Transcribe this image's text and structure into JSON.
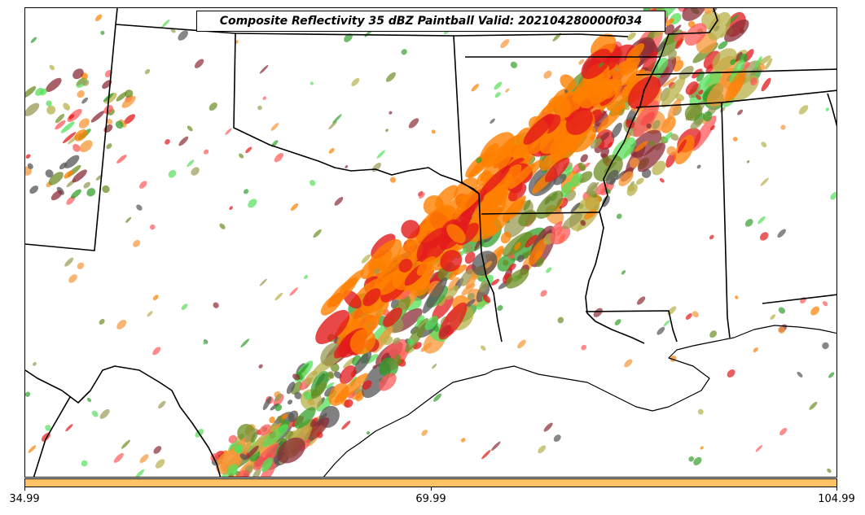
{
  "title": "Composite Reflectivity 35 dBZ Paintball Valid: 202104280000f034",
  "colorbar": {
    "fill_color": "#ffc266",
    "tick_labels": [
      "34.99",
      "69.99",
      "104.99"
    ]
  },
  "map": {
    "region": "South-central United States (Texas, Oklahoma, Arkansas, Louisiana, Gulf coast)",
    "member_colors": [
      "#e31a1c",
      "#ff5a5a",
      "#ff7f00",
      "#f79537",
      "#33a02c",
      "#56e05a",
      "#6b8e23",
      "#9a9a55",
      "#b8b04a",
      "#8b2c36",
      "#555555"
    ]
  }
}
